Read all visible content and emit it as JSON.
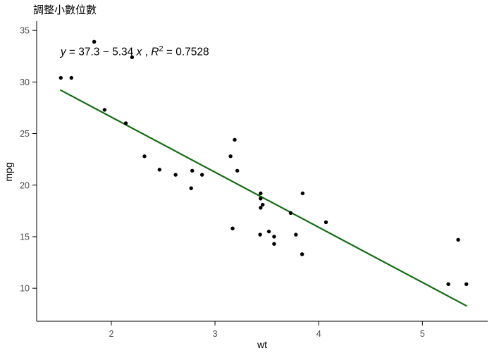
{
  "page": {
    "background": "#ffffff"
  },
  "chart_data": {
    "type": "scatter",
    "title": "調整小數位數",
    "xlabel": "wt",
    "ylabel": "mpg",
    "xlim": [
      1.28,
      5.63
    ],
    "ylim": [
      6.8,
      35.9
    ],
    "x_ticks": [
      2,
      3,
      4,
      5
    ],
    "y_ticks": [
      10,
      15,
      20,
      25,
      30,
      35
    ],
    "grid": false,
    "legend": "none",
    "point_color": "#000000",
    "axis_color": "#000000",
    "tick_label_color": "#4d4d4d",
    "points": [
      [
        2.62,
        21.0
      ],
      [
        2.875,
        21.0
      ],
      [
        2.32,
        22.8
      ],
      [
        3.215,
        21.4
      ],
      [
        3.44,
        18.7
      ],
      [
        3.46,
        18.1
      ],
      [
        3.57,
        14.3
      ],
      [
        3.19,
        24.4
      ],
      [
        3.15,
        22.8
      ],
      [
        3.44,
        19.2
      ],
      [
        3.44,
        17.8
      ],
      [
        4.07,
        16.4
      ],
      [
        3.73,
        17.3
      ],
      [
        3.78,
        15.2
      ],
      [
        5.25,
        10.4
      ],
      [
        5.424,
        10.4
      ],
      [
        5.345,
        14.7
      ],
      [
        2.2,
        32.4
      ],
      [
        1.615,
        30.4
      ],
      [
        1.835,
        33.9
      ],
      [
        2.465,
        21.5
      ],
      [
        3.52,
        15.5
      ],
      [
        3.435,
        15.2
      ],
      [
        3.84,
        13.3
      ],
      [
        3.845,
        19.2
      ],
      [
        1.935,
        27.3
      ],
      [
        2.14,
        26.0
      ],
      [
        1.513,
        30.4
      ],
      [
        3.17,
        15.8
      ],
      [
        2.77,
        19.7
      ],
      [
        3.57,
        15.0
      ],
      [
        2.78,
        21.4
      ]
    ],
    "regression": {
      "slope": -5.344,
      "intercept": 37.285,
      "x_range": [
        1.513,
        5.424
      ],
      "color": "#146b14",
      "equation_label": "y = 37.3 − 5.34 x",
      "r_squared": 0.7528,
      "r_squared_label": "R² = 0.7528"
    },
    "annotation": {
      "x": 1.51,
      "y": 32.6,
      "full_text": "y = 37.3 − 5.34 x , R² = 0.7528",
      "parts": [
        {
          "text": "y",
          "italic": true
        },
        {
          "text": " = 37.3 − 5.34 ",
          "italic": false
        },
        {
          "text": "x",
          "italic": true
        },
        {
          "text": " , ",
          "italic": false
        },
        {
          "text": "R",
          "italic": true
        },
        {
          "text": "2",
          "sup": true
        },
        {
          "text": " = 0.7528",
          "italic": false
        }
      ]
    }
  }
}
